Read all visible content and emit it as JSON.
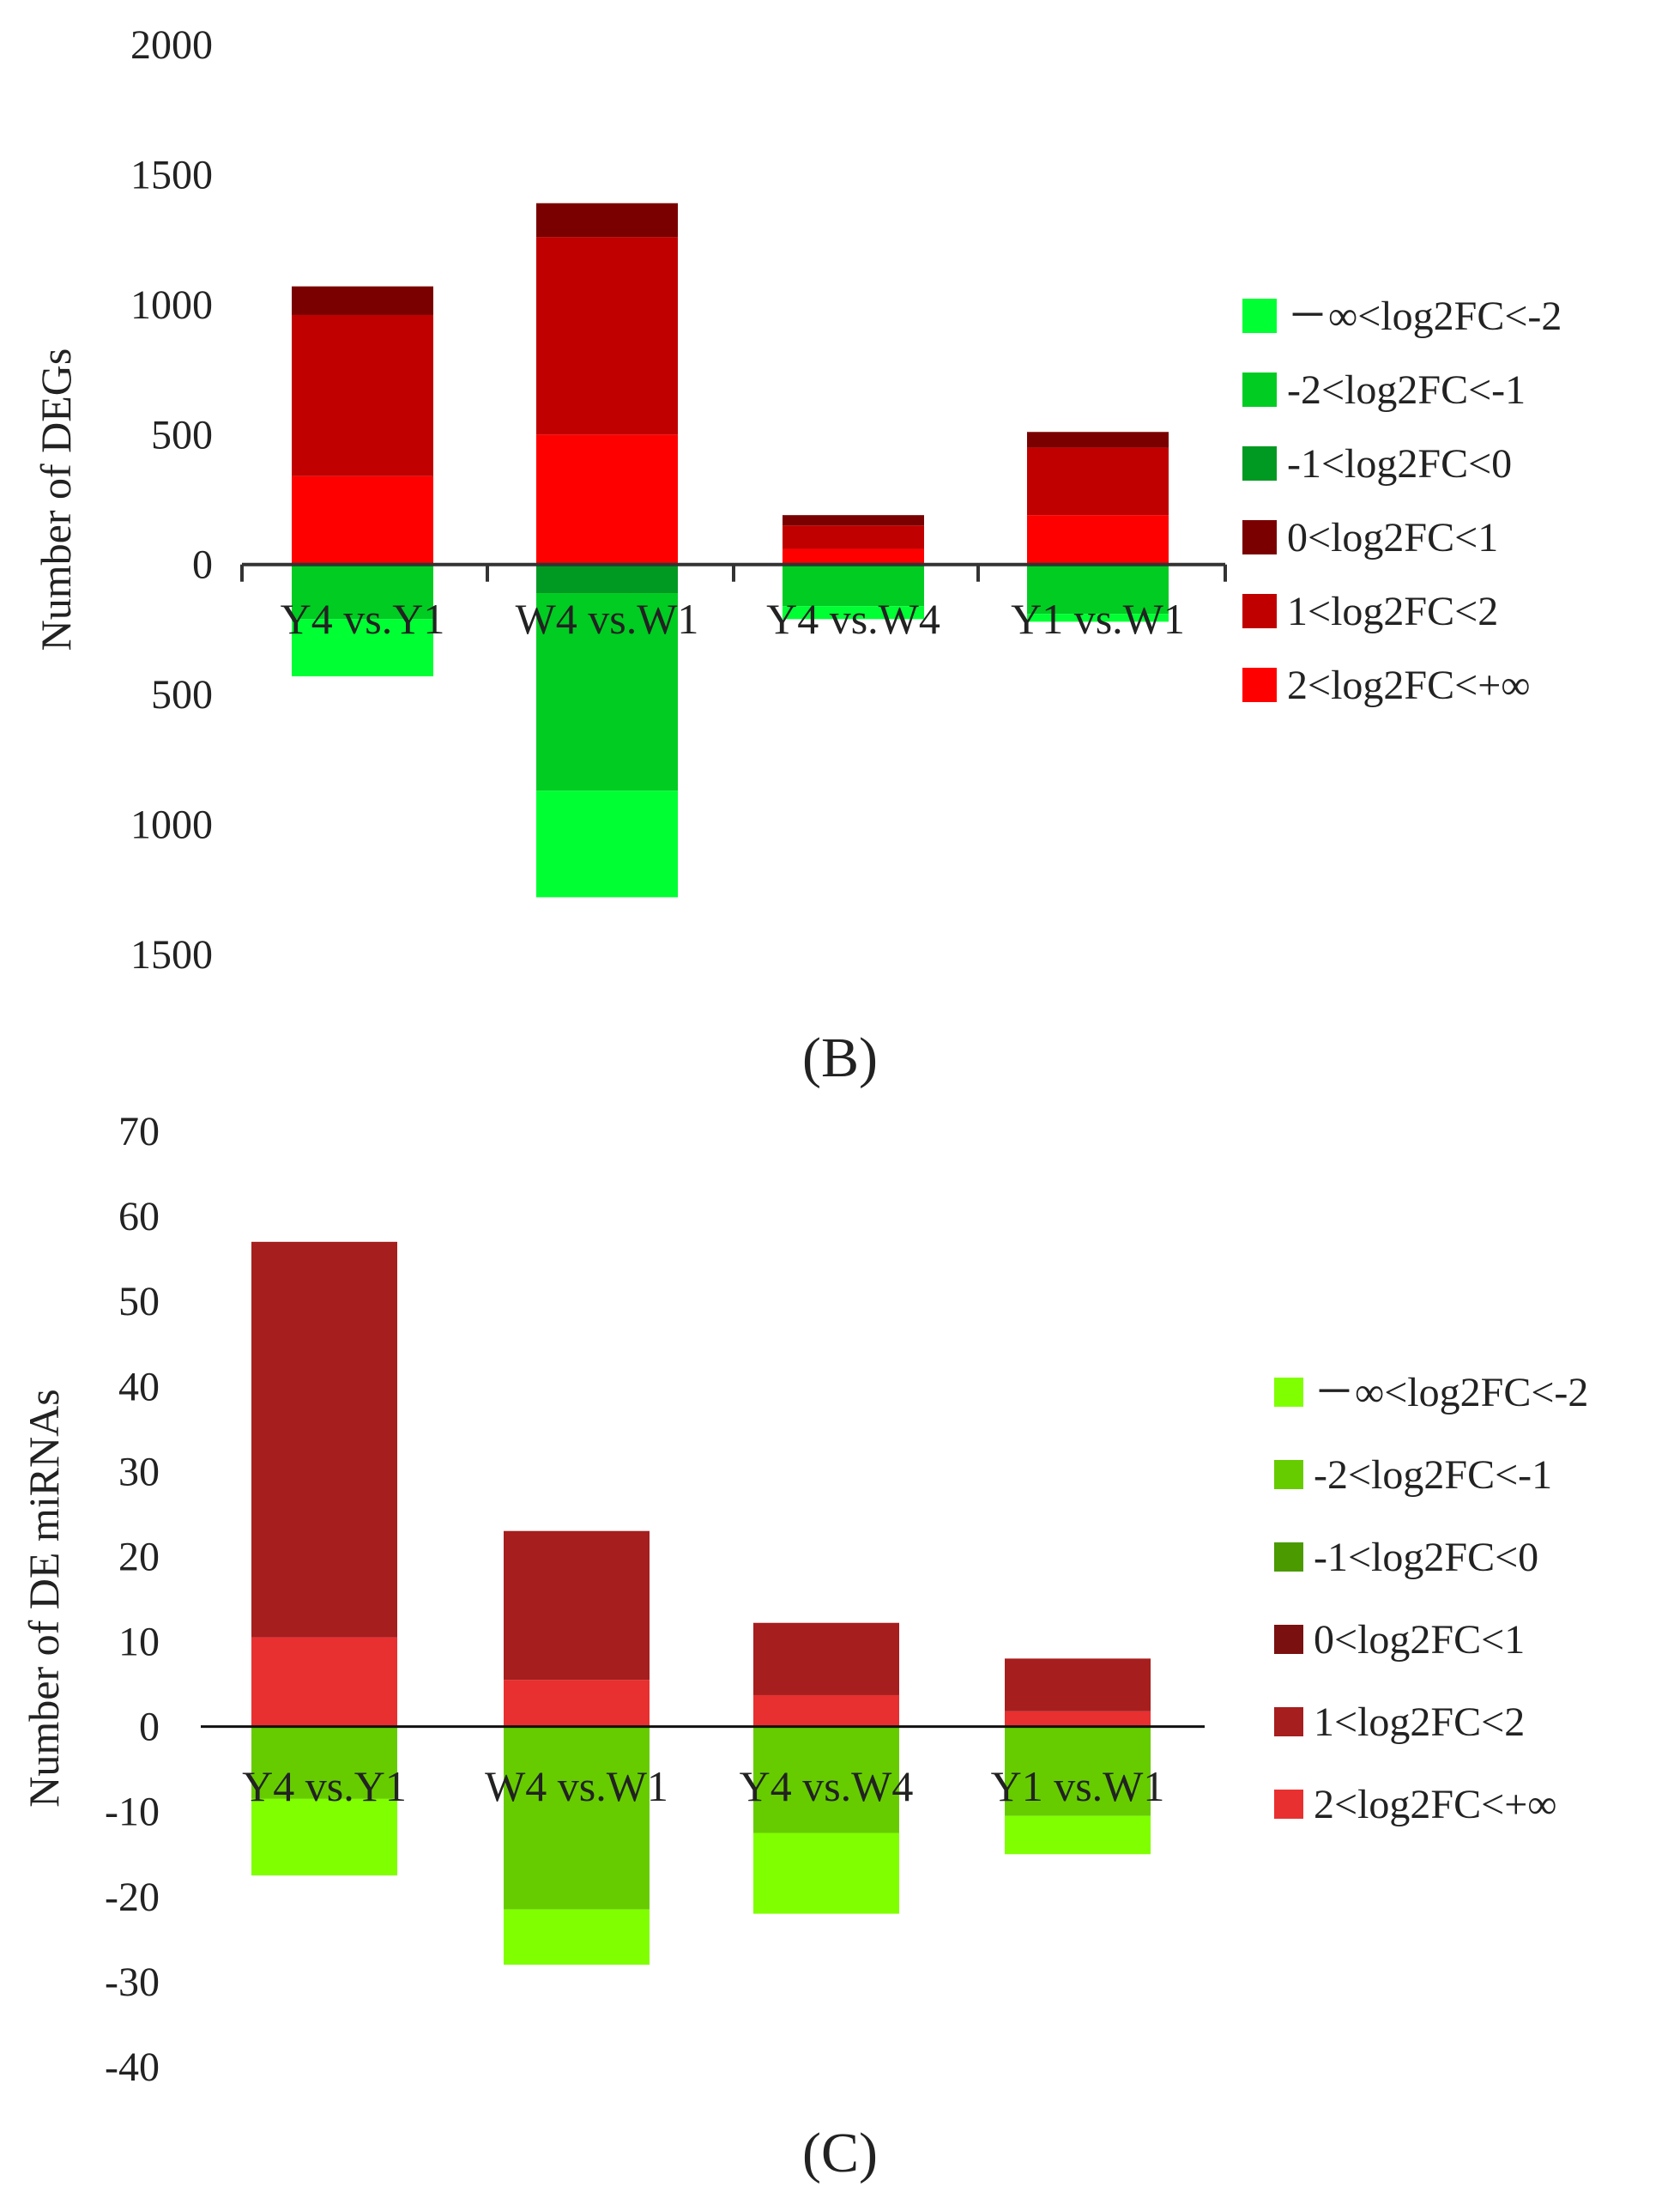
{
  "chart_data": [
    {
      "type": "bar",
      "stacked": true,
      "panel_label": "(B)",
      "ylabel": "Number of DEGs",
      "xlabel": "",
      "categories": [
        "Y4 vs.Y1",
        "W4 vs.W1",
        "Y4 vs.W4",
        "Y1 vs.W1"
      ],
      "yticks": [
        2000,
        1500,
        1000,
        500,
        0,
        -500,
        -1000,
        -1500
      ],
      "ytick_labels": [
        "2000",
        "1500",
        "1000",
        "500",
        "0",
        "500",
        "1000",
        "1500"
      ],
      "ylim": [
        -1500,
        2000
      ],
      "legend_position": "right",
      "series": [
        {
          "name": "－∞<log2FC<-2",
          "color": "#00ff33",
          "values": [
            -220,
            -410,
            -50,
            -30
          ]
        },
        {
          "name": "-2<log2FC<-1",
          "color": "#00cc22",
          "values": [
            -210,
            -760,
            -160,
            -190
          ]
        },
        {
          "name": "-1<log2FC<0",
          "color": "#009922",
          "values": [
            0,
            -110,
            0,
            0
          ]
        },
        {
          "name": "0<log2FC<1",
          "color": "#7a0000",
          "values": [
            110,
            130,
            40,
            60
          ]
        },
        {
          "name": "1<log2FC<2",
          "color": "#c00000",
          "values": [
            620,
            760,
            90,
            260
          ]
        },
        {
          "name": "2<log2FC<+∞",
          "color": "#ff0000",
          "values": [
            340,
            500,
            60,
            190
          ]
        }
      ]
    },
    {
      "type": "bar",
      "stacked": true,
      "panel_label": "(C)",
      "ylabel": "Number of DE miRNAs",
      "xlabel": "",
      "categories": [
        "Y4 vs.Y1",
        "W4 vs.W1",
        "Y4 vs.W4",
        "Y1 vs.W1"
      ],
      "yticks": [
        70,
        60,
        50,
        40,
        30,
        20,
        10,
        0,
        -10,
        -20,
        -30,
        -40
      ],
      "ytick_labels": [
        "70",
        "60",
        "50",
        "40",
        "30",
        "20",
        "10",
        "0",
        "-10",
        "-20",
        "-30",
        "-40"
      ],
      "ylim": [
        -40,
        70
      ],
      "legend_position": "right",
      "series": [
        {
          "name": "－∞<log2FC<-2",
          "color": "#80ff00",
          "values": [
            -9,
            -6.5,
            -9.5,
            -4.5
          ]
        },
        {
          "name": "-2<log2FC<-1",
          "color": "#66cc00",
          "values": [
            -8.5,
            -21.5,
            -12.5,
            -10.5
          ]
        },
        {
          "name": "-1<log2FC<0",
          "color": "#4a9a00",
          "values": [
            0,
            0,
            0,
            0
          ]
        },
        {
          "name": "0<log2FC<1",
          "color": "#7a1010",
          "values": [
            0,
            0,
            0,
            0
          ]
        },
        {
          "name": "1<log2FC<2",
          "color": "#a61e1e",
          "values": [
            46.5,
            17.5,
            8.5,
            6.2
          ]
        },
        {
          "name": "2<log2FC<+∞",
          "color": "#e83030",
          "values": [
            10.5,
            5.5,
            3.7,
            1.8
          ]
        }
      ]
    }
  ]
}
